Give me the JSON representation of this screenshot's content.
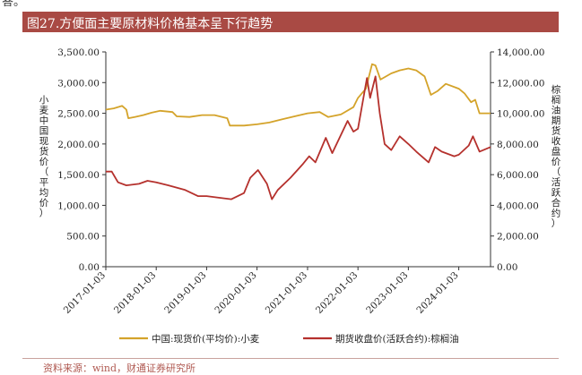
{
  "header": {
    "fragment": "答。",
    "title": "图27.方便面主要原材料价格基本呈下行趋势"
  },
  "source": "资料来源：wind，财通证券研究所",
  "colors": {
    "wheat": "#d4a32a",
    "palm": "#b5312d",
    "title_bg": "#a94a44",
    "axis": "#333333"
  },
  "chart_data": {
    "type": "line",
    "xlabel": "",
    "x_ticks": [
      "2017-01-03",
      "2018-01-03",
      "2019-01-03",
      "2020-01-03",
      "2021-01-03",
      "2022-01-03",
      "2023-01-03",
      "2024-01-03"
    ],
    "x_range": [
      "2017-01-03",
      "2024-08-20"
    ],
    "ylabel_left": "小麦中国现货价（平均价）",
    "ylabel_right": "棕榈油期货收盘价（活跃合约）",
    "ylim_left": [
      0,
      3500
    ],
    "ylim_right": [
      0,
      14000
    ],
    "y_ticks_left": [
      "0.00",
      "500.00",
      "1,000.00",
      "1,500.00",
      "2,000.00",
      "2,500.00",
      "3,000.00",
      "3,500.00"
    ],
    "y_ticks_right": [
      "0.00",
      "2,000.00",
      "4,000.00",
      "6,000.00",
      "8,000.00",
      "10,000.00",
      "12,000.00",
      "14,000.00"
    ],
    "grid": false,
    "legend_position": "bottom",
    "series": [
      {
        "name": "中国:现货价(平均价):小麦",
        "axis": "left",
        "points": [
          [
            "2017-01-03",
            2560
          ],
          [
            "2017-03-01",
            2580
          ],
          [
            "2017-05-01",
            2620
          ],
          [
            "2017-06-01",
            2560
          ],
          [
            "2017-06-15",
            2420
          ],
          [
            "2017-08-01",
            2440
          ],
          [
            "2017-10-01",
            2470
          ],
          [
            "2017-12-01",
            2510
          ],
          [
            "2018-02-01",
            2540
          ],
          [
            "2018-05-01",
            2520
          ],
          [
            "2018-06-01",
            2450
          ],
          [
            "2018-09-01",
            2440
          ],
          [
            "2018-12-01",
            2470
          ],
          [
            "2019-03-01",
            2470
          ],
          [
            "2019-06-01",
            2420
          ],
          [
            "2019-06-20",
            2300
          ],
          [
            "2019-10-01",
            2300
          ],
          [
            "2020-01-03",
            2320
          ],
          [
            "2020-04-01",
            2350
          ],
          [
            "2020-07-01",
            2400
          ],
          [
            "2020-10-01",
            2450
          ],
          [
            "2021-01-03",
            2500
          ],
          [
            "2021-04-01",
            2520
          ],
          [
            "2021-06-01",
            2440
          ],
          [
            "2021-09-01",
            2480
          ],
          [
            "2021-12-01",
            2600
          ],
          [
            "2022-01-03",
            2750
          ],
          [
            "2022-03-01",
            2900
          ],
          [
            "2022-04-15",
            3300
          ],
          [
            "2022-05-10",
            3280
          ],
          [
            "2022-06-15",
            3050
          ],
          [
            "2022-09-01",
            3150
          ],
          [
            "2022-11-01",
            3200
          ],
          [
            "2023-01-03",
            3230
          ],
          [
            "2023-03-01",
            3200
          ],
          [
            "2023-05-01",
            3100
          ],
          [
            "2023-06-15",
            2800
          ],
          [
            "2023-08-01",
            2860
          ],
          [
            "2023-10-01",
            2980
          ],
          [
            "2024-01-03",
            2900
          ],
          [
            "2024-02-15",
            2820
          ],
          [
            "2024-04-01",
            2680
          ],
          [
            "2024-05-01",
            2720
          ],
          [
            "2024-06-01",
            2500
          ],
          [
            "2024-08-20",
            2500
          ]
        ]
      },
      {
        "name": "期货收盘价(活跃合约):棕榈油",
        "axis": "right",
        "points": [
          [
            "2017-01-03",
            6200
          ],
          [
            "2017-02-15",
            6200
          ],
          [
            "2017-04-01",
            5500
          ],
          [
            "2017-06-01",
            5300
          ],
          [
            "2017-09-01",
            5400
          ],
          [
            "2017-11-01",
            5600
          ],
          [
            "2018-01-03",
            5500
          ],
          [
            "2018-04-01",
            5300
          ],
          [
            "2018-08-01",
            5000
          ],
          [
            "2018-11-01",
            4600
          ],
          [
            "2019-01-03",
            4600
          ],
          [
            "2019-04-01",
            4500
          ],
          [
            "2019-07-01",
            4400
          ],
          [
            "2019-10-01",
            4800
          ],
          [
            "2019-11-15",
            5800
          ],
          [
            "2020-01-10",
            6300
          ],
          [
            "2020-03-15",
            5400
          ],
          [
            "2020-04-20",
            4400
          ],
          [
            "2020-06-01",
            5000
          ],
          [
            "2020-09-01",
            5800
          ],
          [
            "2020-12-01",
            6700
          ],
          [
            "2021-01-15",
            7200
          ],
          [
            "2021-03-01",
            6800
          ],
          [
            "2021-05-15",
            8400
          ],
          [
            "2021-07-01",
            7400
          ],
          [
            "2021-10-20",
            9500
          ],
          [
            "2021-12-01",
            8800
          ],
          [
            "2022-01-03",
            9000
          ],
          [
            "2022-03-09",
            12300
          ],
          [
            "2022-04-01",
            11000
          ],
          [
            "2022-05-10",
            12400
          ],
          [
            "2022-06-10",
            10000
          ],
          [
            "2022-07-15",
            8000
          ],
          [
            "2022-09-01",
            7600
          ],
          [
            "2022-11-01",
            8500
          ],
          [
            "2023-01-03",
            8000
          ],
          [
            "2023-03-01",
            7500
          ],
          [
            "2023-05-30",
            6800
          ],
          [
            "2023-07-15",
            7800
          ],
          [
            "2023-09-01",
            7500
          ],
          [
            "2023-12-01",
            7200
          ],
          [
            "2024-01-03",
            7300
          ],
          [
            "2024-03-15",
            7900
          ],
          [
            "2024-04-15",
            8500
          ],
          [
            "2024-06-01",
            7500
          ],
          [
            "2024-08-20",
            7800
          ]
        ]
      }
    ]
  }
}
